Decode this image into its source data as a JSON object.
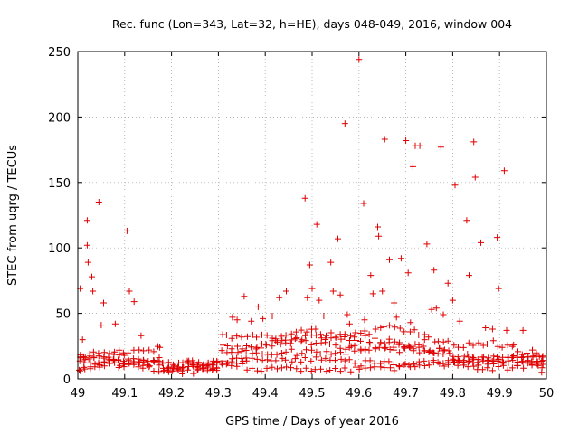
{
  "chart_data": {
    "type": "scatter",
    "title": "Rec. func (Lon=343, Lat=32, h=HE), days 048-049, 2016, window 004",
    "xlabel": "GPS time / Days of year 2016",
    "ylabel": "STEC from uqrg / TECUs",
    "xlim": [
      49,
      50
    ],
    "ylim": [
      0,
      250
    ],
    "xticks": [
      "49",
      "49.1",
      "49.2",
      "49.3",
      "49.4",
      "49.5",
      "49.6",
      "49.7",
      "49.8",
      "49.9",
      "50"
    ],
    "yticks": [
      "0",
      "50",
      "100",
      "150",
      "200",
      "250"
    ],
    "grid": true,
    "marker": "+",
    "color": "#e00000",
    "outliers": [
      [
        49.005,
        69
      ],
      [
        49.01,
        30
      ],
      [
        49.02,
        121
      ],
      [
        49.02,
        102
      ],
      [
        49.022,
        89
      ],
      [
        49.03,
        78
      ],
      [
        49.032,
        67
      ],
      [
        49.045,
        135
      ],
      [
        49.05,
        41
      ],
      [
        49.055,
        58
      ],
      [
        49.08,
        42
      ],
      [
        49.105,
        113
      ],
      [
        49.11,
        67
      ],
      [
        49.12,
        59
      ],
      [
        49.135,
        33
      ],
      [
        49.175,
        24
      ],
      [
        49.255,
        11
      ],
      [
        49.33,
        47
      ],
      [
        49.34,
        45
      ],
      [
        49.355,
        63
      ],
      [
        49.37,
        44
      ],
      [
        49.385,
        55
      ],
      [
        49.395,
        46
      ],
      [
        49.415,
        48
      ],
      [
        49.43,
        62
      ],
      [
        49.445,
        67
      ],
      [
        49.485,
        138
      ],
      [
        49.49,
        62
      ],
      [
        49.495,
        87
      ],
      [
        49.5,
        69
      ],
      [
        49.51,
        118
      ],
      [
        49.515,
        60
      ],
      [
        49.525,
        48
      ],
      [
        49.54,
        89
      ],
      [
        49.545,
        67
      ],
      [
        49.555,
        107
      ],
      [
        49.56,
        64
      ],
      [
        49.57,
        195
      ],
      [
        49.575,
        49
      ],
      [
        49.58,
        42
      ],
      [
        49.59,
        32
      ],
      [
        49.6,
        244
      ],
      [
        49.61,
        134
      ],
      [
        49.612,
        45
      ],
      [
        49.625,
        79
      ],
      [
        49.63,
        65
      ],
      [
        49.64,
        116
      ],
      [
        49.642,
        109
      ],
      [
        49.65,
        67
      ],
      [
        49.655,
        183
      ],
      [
        49.665,
        91
      ],
      [
        49.675,
        58
      ],
      [
        49.68,
        47
      ],
      [
        49.69,
        92
      ],
      [
        49.7,
        182
      ],
      [
        49.705,
        81
      ],
      [
        49.71,
        43
      ],
      [
        49.715,
        162
      ],
      [
        49.72,
        178
      ],
      [
        49.73,
        178
      ],
      [
        49.74,
        30
      ],
      [
        49.745,
        103
      ],
      [
        49.755,
        53
      ],
      [
        49.76,
        83
      ],
      [
        49.765,
        54
      ],
      [
        49.775,
        177
      ],
      [
        49.78,
        49
      ],
      [
        49.79,
        73
      ],
      [
        49.8,
        60
      ],
      [
        49.805,
        148
      ],
      [
        49.815,
        44
      ],
      [
        49.83,
        121
      ],
      [
        49.835,
        79
      ],
      [
        49.845,
        181
      ],
      [
        49.848,
        154
      ],
      [
        49.86,
        104
      ],
      [
        49.87,
        39
      ],
      [
        49.885,
        38
      ],
      [
        49.895,
        108
      ],
      [
        49.898,
        69
      ],
      [
        49.91,
        159
      ],
      [
        49.915,
        37
      ],
      [
        49.93,
        26
      ],
      [
        49.95,
        37
      ],
      [
        49.97,
        22
      ],
      [
        49.985,
        17
      ],
      [
        49.99,
        5
      ]
    ]
  }
}
